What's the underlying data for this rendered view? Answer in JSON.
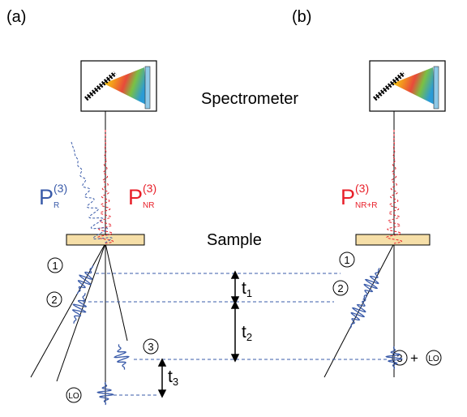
{
  "panel_labels": [
    "(a)",
    "(b)"
  ],
  "spectrometer": "Spectrometer",
  "sample": "Sample",
  "polarizations": [
    {
      "symbol": "P",
      "superscript": "(3)",
      "subscript": "R"
    },
    {
      "symbol": "P",
      "superscript": "(3)",
      "subscript": "NR"
    },
    {
      "symbol": "P",
      "superscript": "(3)",
      "subscript": "NR+R"
    }
  ],
  "pulses": [
    "1",
    "2",
    "3",
    "LO"
  ],
  "delays": [
    {
      "symbol": "t",
      "subscript": "1"
    },
    {
      "symbol": "t",
      "subscript": "2"
    },
    {
      "symbol": "t",
      "subscript": "3"
    }
  ],
  "combination": "+"
}
